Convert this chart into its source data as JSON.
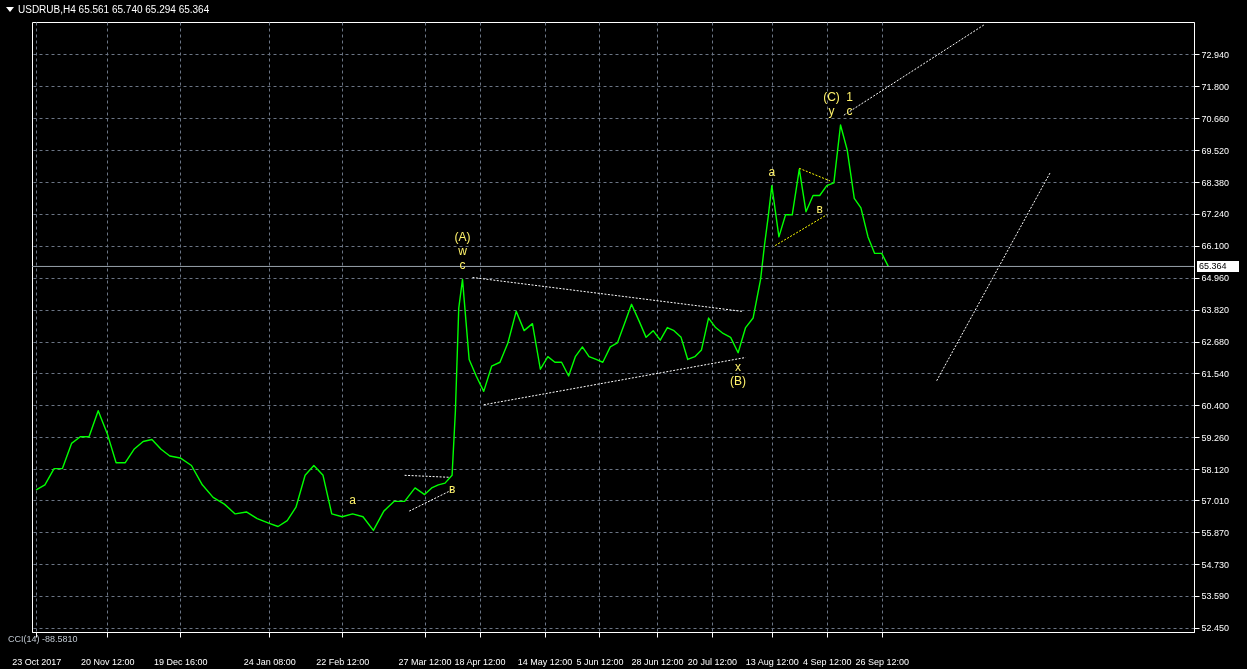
{
  "chart_data": {
    "type": "line",
    "title": "USDRUB,H4  65.561 65.740 65.294 65.364",
    "x": [
      "2017-10-23T00:00",
      "2017-10-26T12:00",
      "2017-10-30T04:00",
      "2017-11-02T12:00",
      "2017-11-06T04:00",
      "2017-11-09T16:00",
      "2017-11-13T04:00",
      "2017-11-16T20:00",
      "2017-11-20T12:00",
      "2017-11-24T00:00",
      "2017-11-27T16:00",
      "2017-12-01T04:00",
      "2017-12-04T20:00",
      "2017-12-08T08:00",
      "2017-12-12T00:00",
      "2017-12-15T12:00",
      "2017-12-19T16:00",
      "2017-12-24T04:00",
      "2017-12-28T12:00",
      "2018-01-01T20:00",
      "2018-01-06T08:00",
      "2018-01-10T16:00",
      "2018-01-15T04:00",
      "2018-01-19T12:00",
      "2018-01-24T08:00",
      "2018-01-27T20:00",
      "2018-01-31T12:00",
      "2018-02-04T00:00",
      "2018-02-07T16:00",
      "2018-02-11T04:00",
      "2018-02-14T20:00",
      "2018-02-18T08:00",
      "2018-02-22T12:00",
      "2018-02-26T16:00",
      "2018-03-02T20:00",
      "2018-03-07T00:00",
      "2018-03-11T04:00",
      "2018-03-15T08:00",
      "2018-03-19T12:00",
      "2018-03-23T16:00",
      "2018-03-27T12:00",
      "2018-03-30T08:00",
      "2018-04-02T00:00",
      "2018-04-04T16:00",
      "2018-04-07T12:00",
      "2018-04-08T20:00",
      "2018-04-10T04:00",
      "2018-04-11T16:00",
      "2018-04-14T08:00",
      "2018-04-17T04:00",
      "2018-04-20T04:00",
      "2018-04-23T08:00",
      "2018-04-26T16:00",
      "2018-04-29T20:00",
      "2018-05-03T04:00",
      "2018-05-06T08:00",
      "2018-05-09T16:00",
      "2018-05-12T20:00",
      "2018-05-15T20:00",
      "2018-05-18T16:00",
      "2018-05-21T08:00",
      "2018-05-24T04:00",
      "2018-05-26T20:00",
      "2018-05-29T16:00",
      "2018-06-01T08:00",
      "2018-06-04T04:00",
      "2018-06-06T20:00",
      "2018-06-09T20:00",
      "2018-06-12T16:00",
      "2018-06-15T12:00",
      "2018-06-18T08:00",
      "2018-06-21T08:00",
      "2018-06-24T04:00",
      "2018-06-27T00:00",
      "2018-06-29T20:00",
      "2018-07-02T16:00",
      "2018-07-05T08:00",
      "2018-07-08T04:00",
      "2018-07-10T20:00",
      "2018-07-13T16:00",
      "2018-07-16T08:00",
      "2018-07-19T04:00",
      "2018-07-22T00:00",
      "2018-07-25T00:00",
      "2018-07-28T00:00",
      "2018-07-31T00:00",
      "2018-08-03T00:00",
      "2018-08-06T00:00",
      "2018-08-09T00:00",
      "2018-08-10T12:00",
      "2018-08-12T00:00",
      "2018-08-13T12:00",
      "2018-08-16T08:00",
      "2018-08-19T00:00",
      "2018-08-21T16:00",
      "2018-08-24T12:00",
      "2018-08-27T04:00",
      "2018-08-30T00:00",
      "2018-09-01T16:00",
      "2018-09-04T12:00",
      "2018-09-07T08:00",
      "2018-09-10T00:00",
      "2018-09-12T16:00",
      "2018-09-15T12:00",
      "2018-09-18T04:00",
      "2018-09-21T00:00",
      "2018-09-23T16:00",
      "2018-09-26T12:00",
      "2018-09-29T04:00"
    ],
    "series": [
      {
        "color": "#00ff00",
        "line_style": "solid",
        "values": [
          57.38,
          57.56,
          58.14,
          58.14,
          59.04,
          59.28,
          59.28,
          60.21,
          59.38,
          58.35,
          58.35,
          58.83,
          59.11,
          59.18,
          58.83,
          58.59,
          58.52,
          58.25,
          57.56,
          57.11,
          56.87,
          56.52,
          56.59,
          56.35,
          56.18,
          56.07,
          56.28,
          56.76,
          57.9,
          58.25,
          57.9,
          56.52,
          56.42,
          56.52,
          56.42,
          55.93,
          56.62,
          56.97,
          56.97,
          57.45,
          57.21,
          57.45,
          57.56,
          57.62,
          57.9,
          60.21,
          63.87,
          64.9,
          62.04,
          61.45,
          60.9,
          61.8,
          61.94,
          62.63,
          63.76,
          63.07,
          63.32,
          61.69,
          62.14,
          61.94,
          61.94,
          61.45,
          62.14,
          62.49,
          62.14,
          62.04,
          61.94,
          62.49,
          62.63,
          63.32,
          64.01,
          63.42,
          62.83,
          63.07,
          62.73,
          63.18,
          63.07,
          62.83,
          62.04,
          62.14,
          62.38,
          63.52,
          63.18,
          62.97,
          62.83,
          62.28,
          63.18,
          63.52,
          64.9,
          66.08,
          67.11,
          68.25,
          66.42,
          67.21,
          67.21,
          68.84,
          67.32,
          67.9,
          67.9,
          68.25,
          68.35,
          70.42,
          69.53,
          67.8,
          67.46,
          66.42,
          65.83,
          65.83,
          65.36
        ]
      },
      {
        "color": "#ffffff",
        "line_style": "dotted",
        "x": [
          "2018-04-15T16:00",
          "2018-08-01T12:00"
        ],
        "values": [
          64.97,
          63.76
        ]
      },
      {
        "color": "#ffffff",
        "line_style": "dotted",
        "x": [
          "2018-04-20T04:00",
          "2018-08-03T00:00"
        ],
        "values": [
          60.42,
          62.11
        ]
      },
      {
        "color": "#ffffff",
        "line_style": "dotted",
        "x": [
          "2018-03-19T12:00",
          "2018-04-06T04:00"
        ],
        "values": [
          57.9,
          57.83
        ]
      },
      {
        "color": "#ffffff",
        "line_style": "dotted",
        "x": [
          "2018-03-21T08:00",
          "2018-04-07T12:00"
        ],
        "values": [
          56.62,
          57.38
        ]
      },
      {
        "color": "#ffff00",
        "line_style": "dotted",
        "x": [
          "2018-08-24T12:00",
          "2018-09-05T20:00"
        ],
        "values": [
          68.87,
          68.42
        ]
      },
      {
        "color": "#ffff00",
        "line_style": "dotted",
        "x": [
          "2018-08-14T20:00",
          "2018-09-04T12:00"
        ],
        "values": [
          66.11,
          67.21
        ]
      },
      {
        "color": "#ffffff",
        "line_style": "dotted",
        "x": [
          "2018-09-11T08:00",
          "2018-11-06T16:00"
        ],
        "values": [
          70.77,
          74.01
        ]
      },
      {
        "color": "#ffffff",
        "line_style": "dotted",
        "x": [
          "2018-10-18T12:00",
          "2018-12-02T20:00"
        ],
        "values": [
          61.28,
          68.7
        ]
      }
    ],
    "xlim": [
      "2017-10-21T08:00",
      "2019-01-29T12:00"
    ],
    "ylim": [
      52.3,
      74.1
    ],
    "xticks": [
      {
        "value": "2017-10-23T00:00",
        "label": "23 Oct 2017"
      },
      {
        "value": "2017-11-20T12:00",
        "label": "20 Nov 12:00"
      },
      {
        "value": "2017-12-19T16:00",
        "label": "19 Dec 16:00"
      },
      {
        "value": "2018-01-24T08:00",
        "label": "24 Jan 08:00"
      },
      {
        "value": "2018-02-22T12:00",
        "label": "22 Feb 12:00"
      },
      {
        "value": "2018-03-27T12:00",
        "label": "27 Mar 12:00"
      },
      {
        "value": "2018-04-18T12:00",
        "label": "18 Apr 12:00"
      },
      {
        "value": "2018-05-14T12:00",
        "label": "14 May 12:00"
      },
      {
        "value": "2018-06-05T12:00",
        "label": "5 Jun 12:00"
      },
      {
        "value": "2018-06-28T12:00",
        "label": "28 Jun 12:00"
      },
      {
        "value": "2018-07-20T12:00",
        "label": "20 Jul 12:00"
      },
      {
        "value": "2018-08-13T12:00",
        "label": "13 Aug 12:00"
      },
      {
        "value": "2018-09-04T12:00",
        "label": "4 Sep 12:00"
      },
      {
        "value": "2018-09-26T12:00",
        "label": "26 Sep 12:00"
      }
    ],
    "yticks": [
      {
        "value": 52.45,
        "label": "52.450"
      },
      {
        "value": 53.59,
        "label": "53.590"
      },
      {
        "value": 54.73,
        "label": "54.730"
      },
      {
        "value": 55.87,
        "label": "55.870"
      },
      {
        "value": 57.01,
        "label": "57.010"
      },
      {
        "value": 58.12,
        "label": "58.120"
      },
      {
        "value": 59.26,
        "label": "59.260"
      },
      {
        "value": 60.4,
        "label": "60.400"
      },
      {
        "value": 61.54,
        "label": "61.540"
      },
      {
        "value": 62.68,
        "label": "62.680"
      },
      {
        "value": 63.82,
        "label": "63.820"
      },
      {
        "value": 64.96,
        "label": "64.960"
      },
      {
        "value": 66.1,
        "label": "66.100"
      },
      {
        "value": 67.24,
        "label": "67.240"
      },
      {
        "value": 68.38,
        "label": "68.380"
      },
      {
        "value": 69.52,
        "label": "69.520"
      },
      {
        "value": 70.66,
        "label": "70.660"
      },
      {
        "value": 71.8,
        "label": "71.800"
      },
      {
        "value": 72.94,
        "label": "72.940"
      }
    ],
    "grid": true,
    "ref_lines": [
      {
        "axis": "y",
        "value": 65.364,
        "label": "65.364",
        "color": "#9aa3ad"
      }
    ],
    "annotations": [
      {
        "text": "(A)",
        "x": "2018-04-11T16:00",
        "y": 64.9
      },
      {
        "text": "w",
        "x": "2018-04-11T16:00",
        "y": 64.9
      },
      {
        "text": "c",
        "x": "2018-04-11T16:00",
        "y": 64.9
      },
      {
        "text": "a",
        "x": "2018-02-26T16:00",
        "y": 56.52
      },
      {
        "text": "в",
        "x": "2018-04-07T12:00",
        "y": 57.9
      },
      {
        "text": "x",
        "x": "2018-07-31T00:00",
        "y": 62.28
      },
      {
        "text": "(B)",
        "x": "2018-07-31T00:00",
        "y": 62.28
      },
      {
        "text": "a",
        "x": "2018-08-13T12:00",
        "y": 68.25
      },
      {
        "text": "в",
        "x": "2018-09-01T16:00",
        "y": 67.9
      },
      {
        "text": "(C)",
        "x": "2018-09-10T00:00",
        "y": 70.42
      },
      {
        "text": "1",
        "x": "2018-09-10T00:00",
        "y": 70.42
      },
      {
        "text": "y",
        "x": "2018-09-10T00:00",
        "y": 70.42
      },
      {
        "text": "c",
        "x": "2018-09-10T00:00",
        "y": 70.42
      },
      "CCI(14) -88.5810"
    ]
  }
}
